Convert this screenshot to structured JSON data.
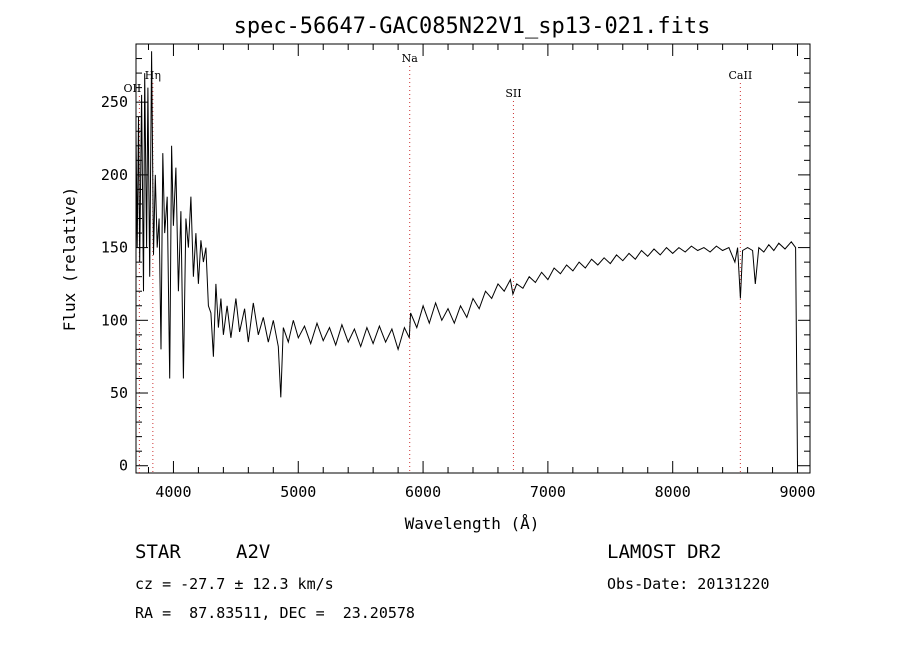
{
  "chart_data": {
    "type": "line",
    "title": "spec-56647-GAC085N22V1_sp13-021.fits",
    "xlabel": "Wavelength (Å)",
    "ylabel": "Flux (relative)",
    "xlim": [
      3700,
      9100
    ],
    "ylim": [
      -5,
      290
    ],
    "xticks": [
      4000,
      5000,
      6000,
      7000,
      8000,
      9000
    ],
    "yticks": [
      0,
      50,
      100,
      150,
      200,
      250
    ],
    "grid": false,
    "series": [
      {
        "points": [
          [
            3700,
            230
          ],
          [
            3710,
            150
          ],
          [
            3720,
            240
          ],
          [
            3730,
            140
          ],
          [
            3745,
            255
          ],
          [
            3760,
            120
          ],
          [
            3770,
            270
          ],
          [
            3785,
            150
          ],
          [
            3795,
            260
          ],
          [
            3810,
            130
          ],
          [
            3825,
            285
          ],
          [
            3840,
            145
          ],
          [
            3855,
            200
          ],
          [
            3870,
            150
          ],
          [
            3885,
            170
          ],
          [
            3900,
            80
          ],
          [
            3915,
            215
          ],
          [
            3930,
            160
          ],
          [
            3950,
            185
          ],
          [
            3970,
            60
          ],
          [
            3985,
            220
          ],
          [
            4000,
            165
          ],
          [
            4020,
            205
          ],
          [
            4040,
            120
          ],
          [
            4060,
            175
          ],
          [
            4080,
            60
          ],
          [
            4100,
            170
          ],
          [
            4120,
            150
          ],
          [
            4140,
            185
          ],
          [
            4160,
            130
          ],
          [
            4180,
            160
          ],
          [
            4200,
            125
          ],
          [
            4220,
            155
          ],
          [
            4240,
            140
          ],
          [
            4260,
            150
          ],
          [
            4280,
            110
          ],
          [
            4300,
            105
          ],
          [
            4320,
            75
          ],
          [
            4340,
            125
          ],
          [
            4360,
            95
          ],
          [
            4380,
            115
          ],
          [
            4400,
            90
          ],
          [
            4430,
            110
          ],
          [
            4460,
            88
          ],
          [
            4500,
            115
          ],
          [
            4530,
            92
          ],
          [
            4570,
            108
          ],
          [
            4600,
            85
          ],
          [
            4640,
            112
          ],
          [
            4680,
            90
          ],
          [
            4720,
            102
          ],
          [
            4760,
            85
          ],
          [
            4800,
            100
          ],
          [
            4840,
            82
          ],
          [
            4860,
            47
          ],
          [
            4880,
            95
          ],
          [
            4920,
            85
          ],
          [
            4960,
            100
          ],
          [
            5000,
            88
          ],
          [
            5050,
            96
          ],
          [
            5100,
            84
          ],
          [
            5150,
            98
          ],
          [
            5200,
            86
          ],
          [
            5250,
            95
          ],
          [
            5300,
            83
          ],
          [
            5350,
            97
          ],
          [
            5400,
            85
          ],
          [
            5450,
            94
          ],
          [
            5500,
            82
          ],
          [
            5550,
            95
          ],
          [
            5600,
            84
          ],
          [
            5650,
            96
          ],
          [
            5700,
            85
          ],
          [
            5750,
            94
          ],
          [
            5800,
            80
          ],
          [
            5850,
            95
          ],
          [
            5890,
            88
          ],
          [
            5900,
            105
          ],
          [
            5950,
            95
          ],
          [
            6000,
            110
          ],
          [
            6050,
            98
          ],
          [
            6100,
            112
          ],
          [
            6150,
            100
          ],
          [
            6200,
            108
          ],
          [
            6250,
            98
          ],
          [
            6300,
            110
          ],
          [
            6350,
            102
          ],
          [
            6400,
            115
          ],
          [
            6450,
            108
          ],
          [
            6500,
            120
          ],
          [
            6550,
            115
          ],
          [
            6600,
            125
          ],
          [
            6650,
            120
          ],
          [
            6700,
            128
          ],
          [
            6720,
            118
          ],
          [
            6750,
            125
          ],
          [
            6800,
            122
          ],
          [
            6850,
            130
          ],
          [
            6900,
            126
          ],
          [
            6950,
            133
          ],
          [
            7000,
            128
          ],
          [
            7050,
            136
          ],
          [
            7100,
            132
          ],
          [
            7150,
            138
          ],
          [
            7200,
            134
          ],
          [
            7250,
            140
          ],
          [
            7300,
            136
          ],
          [
            7350,
            142
          ],
          [
            7400,
            138
          ],
          [
            7450,
            143
          ],
          [
            7500,
            139
          ],
          [
            7550,
            145
          ],
          [
            7600,
            141
          ],
          [
            7650,
            146
          ],
          [
            7700,
            142
          ],
          [
            7750,
            148
          ],
          [
            7800,
            144
          ],
          [
            7850,
            149
          ],
          [
            7900,
            145
          ],
          [
            7950,
            150
          ],
          [
            8000,
            146
          ],
          [
            8050,
            150
          ],
          [
            8100,
            147
          ],
          [
            8150,
            151
          ],
          [
            8200,
            148
          ],
          [
            8250,
            150
          ],
          [
            8300,
            147
          ],
          [
            8350,
            151
          ],
          [
            8400,
            148
          ],
          [
            8450,
            150
          ],
          [
            8498,
            140
          ],
          [
            8520,
            150
          ],
          [
            8542,
            115
          ],
          [
            8560,
            148
          ],
          [
            8600,
            150
          ],
          [
            8640,
            148
          ],
          [
            8662,
            125
          ],
          [
            8690,
            150
          ],
          [
            8730,
            147
          ],
          [
            8770,
            152
          ],
          [
            8810,
            148
          ],
          [
            8850,
            153
          ],
          [
            8900,
            149
          ],
          [
            8950,
            154
          ],
          [
            8985,
            150
          ],
          [
            9000,
            0
          ]
        ]
      }
    ],
    "spectral_lines": [
      {
        "label": "OII",
        "x": 3727
      },
      {
        "label": "Hη",
        "x": 3835
      },
      {
        "label": "Na",
        "x": 5893
      },
      {
        "label": "SII",
        "x": 6724
      },
      {
        "label": "CaII",
        "x": 8542
      }
    ]
  },
  "info": {
    "object_type": "STAR",
    "subclass": "A2V",
    "survey": "LAMOST DR2",
    "cz": "cz = -27.7 ± 12.3 km/s",
    "obs_date": "Obs-Date: 20131220",
    "coords": "RA =  87.83511, DEC =  23.20578"
  },
  "colors": {
    "line_marker": "#cc3333",
    "spectrum": "#000000"
  }
}
